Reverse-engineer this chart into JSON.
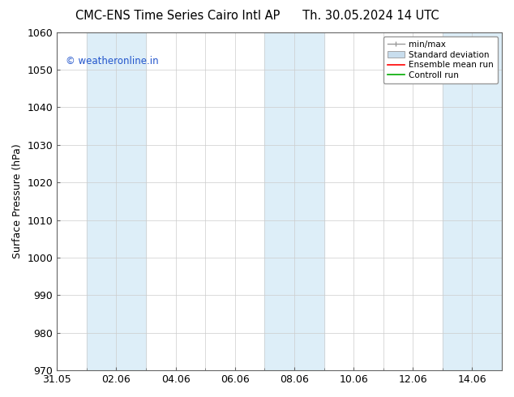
{
  "title_left": "CMC-ENS Time Series Cairo Intl AP",
  "title_right": "Th. 30.05.2024 14 UTC",
  "ylabel": "Surface Pressure (hPa)",
  "ylim": [
    970,
    1060
  ],
  "yticks": [
    970,
    980,
    990,
    1000,
    1010,
    1020,
    1030,
    1040,
    1050,
    1060
  ],
  "xtick_labels": [
    "31.05",
    "02.06",
    "04.06",
    "06.06",
    "08.06",
    "10.06",
    "12.06",
    "14.06"
  ],
  "xtick_positions": [
    0,
    2,
    4,
    6,
    8,
    10,
    12,
    14
  ],
  "x_minor_ticks": [
    1,
    3,
    5,
    7,
    9,
    11,
    13,
    15
  ],
  "xlim": [
    0,
    15
  ],
  "shaded_bands": [
    {
      "x_start": 1,
      "x_end": 3,
      "color": "#ddeef8"
    },
    {
      "x_start": 7,
      "x_end": 9,
      "color": "#ddeef8"
    },
    {
      "x_start": 13,
      "x_end": 15,
      "color": "#ddeef8"
    }
  ],
  "watermark_text": "© weatheronline.in",
  "watermark_color": "#2255cc",
  "legend_items": [
    {
      "label": "min/max",
      "type": "minmax",
      "color": "#aaaaaa"
    },
    {
      "label": "Standard deviation",
      "type": "fill",
      "color": "#c8dded"
    },
    {
      "label": "Ensemble mean run",
      "type": "line",
      "color": "#ff0000"
    },
    {
      "label": "Controll run",
      "type": "line",
      "color": "#00aa00"
    }
  ],
  "bg_color": "#ffffff",
  "plot_bg_color": "#ffffff",
  "tick_label_fontsize": 9,
  "title_fontsize": 10.5,
  "ylabel_fontsize": 9
}
